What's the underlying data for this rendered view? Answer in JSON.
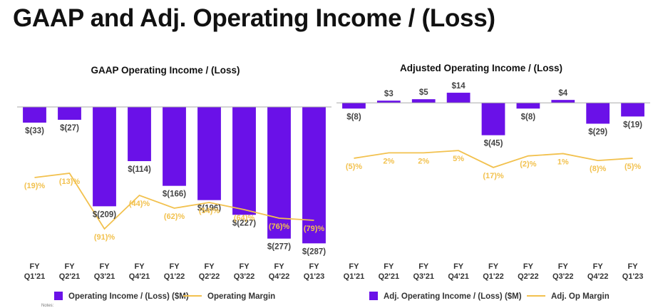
{
  "page": {
    "title": "GAAP and Adj. Operating Income / (Loss)",
    "notes": "Notes:"
  },
  "colors": {
    "bar": "#6a11e8",
    "line": "#f2c14e",
    "axis": "#aaaaaa"
  },
  "chart_data": [
    {
      "type": "bar",
      "title": "GAAP Operating Income / (Loss)",
      "categories": [
        [
          "FY",
          "Q1'21"
        ],
        [
          "FY",
          "Q2'21"
        ],
        [
          "FY",
          "Q3'21"
        ],
        [
          "FY",
          "Q4'21"
        ],
        [
          "FY",
          "Q1'22"
        ],
        [
          "FY",
          "Q2'22"
        ],
        [
          "FY",
          "Q3'22"
        ],
        [
          "FY",
          "Q4'22"
        ],
        [
          "FY",
          "Q1'23"
        ]
      ],
      "series": [
        {
          "name": "Operating Income / (Loss) ($M)",
          "kind": "bar",
          "axis": "left",
          "values": [
            -33,
            -27,
            -209,
            -114,
            -166,
            -196,
            -227,
            -277,
            -287
          ],
          "labels": [
            "$(33)",
            "$(27)",
            "$(209)",
            "$(114)",
            "$(166)",
            "$(196)",
            "$(227)",
            "$(277)",
            "$(287)"
          ]
        },
        {
          "name": "Operating Margin",
          "kind": "line",
          "axis": "right",
          "values": [
            -19,
            -13,
            -91,
            -44,
            -62,
            -54,
            -64,
            -76,
            -79
          ],
          "labels": [
            "(19)%",
            "(13)%",
            "(91)%",
            "(44)%",
            "(62)%",
            "(54)%",
            "(64)%",
            "(76)%",
            "(79)%"
          ]
        }
      ],
      "ylim": [
        -300,
        0
      ],
      "y2lim": [
        -100,
        25
      ],
      "legend": [
        {
          "label": "Operating Income / (Loss) ($M)",
          "kind": "bar"
        },
        {
          "label": "Operating Margin",
          "kind": "line"
        }
      ]
    },
    {
      "type": "bar",
      "title": "Adjusted Operating Income / (Loss)",
      "categories": [
        [
          "FY",
          "Q1'21"
        ],
        [
          "FY",
          "Q2'21"
        ],
        [
          "FY",
          "Q3'21"
        ],
        [
          "FY",
          "Q4'21"
        ],
        [
          "FY",
          "Q1'22"
        ],
        [
          "FY",
          "Q2'22"
        ],
        [
          "FY",
          "Q3'22"
        ],
        [
          "FY",
          "Q4'22"
        ],
        [
          "FY",
          "Q1'23"
        ]
      ],
      "series": [
        {
          "name": "Adj. Operating Income / (Loss) ($M)",
          "kind": "bar",
          "axis": "left",
          "values": [
            -8,
            3,
            5,
            14,
            -45,
            -8,
            4,
            -29,
            -19
          ],
          "labels": [
            "$(8)",
            "$3",
            "$5",
            "$14",
            "$(45)",
            "$(8)",
            "$4",
            "$(29)",
            "$(19)"
          ]
        },
        {
          "name": "Adj. Op Margin",
          "kind": "line",
          "axis": "right",
          "values": [
            -5,
            2,
            2,
            5,
            -17,
            -2,
            1,
            -8,
            -5
          ],
          "labels": [
            "(5)%",
            "2%",
            "2%",
            "5%",
            "(17)%",
            "(2)%",
            "1%",
            "(8)%",
            "(5)%"
          ]
        }
      ],
      "ylim": [
        -80,
        20
      ],
      "y2lim": [
        -45,
        20
      ],
      "legend": [
        {
          "label": "Adj. Operating Income / (Loss) ($M)",
          "kind": "bar"
        },
        {
          "label": "Adj. Op Margin",
          "kind": "line"
        }
      ]
    }
  ]
}
